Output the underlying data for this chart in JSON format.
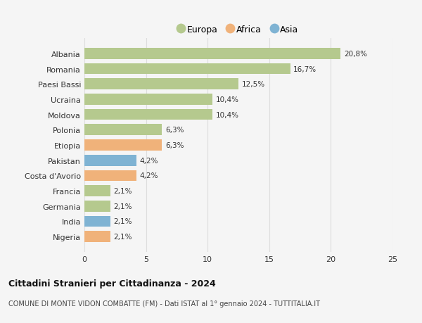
{
  "categories": [
    "Albania",
    "Romania",
    "Paesi Bassi",
    "Ucraina",
    "Moldova",
    "Polonia",
    "Etiopia",
    "Pakistan",
    "Costa d'Avorio",
    "Francia",
    "Germania",
    "India",
    "Nigeria"
  ],
  "values": [
    20.8,
    16.7,
    12.5,
    10.4,
    10.4,
    6.3,
    6.3,
    4.2,
    4.2,
    2.1,
    2.1,
    2.1,
    2.1
  ],
  "labels": [
    "20,8%",
    "16,7%",
    "12,5%",
    "10,4%",
    "10,4%",
    "6,3%",
    "6,3%",
    "4,2%",
    "4,2%",
    "2,1%",
    "2,1%",
    "2,1%",
    "2,1%"
  ],
  "continents": [
    "Europa",
    "Europa",
    "Europa",
    "Europa",
    "Europa",
    "Europa",
    "Africa",
    "Asia",
    "Africa",
    "Europa",
    "Europa",
    "Asia",
    "Africa"
  ],
  "colors": {
    "Europa": "#b5c98e",
    "Africa": "#f0b27a",
    "Asia": "#7fb3d3"
  },
  "title": "Cittadini Stranieri per Cittadinanza - 2024",
  "subtitle": "COMUNE DI MONTE VIDON COMBATTE (FM) - Dati ISTAT al 1° gennaio 2024 - TUTTITALIA.IT",
  "xlim": [
    0,
    25
  ],
  "xticks": [
    0,
    5,
    10,
    15,
    20,
    25
  ],
  "bg_color": "#f5f5f5",
  "grid_color": "#dddddd",
  "bar_height": 0.72,
  "legend_labels": [
    "Europa",
    "Africa",
    "Asia"
  ]
}
